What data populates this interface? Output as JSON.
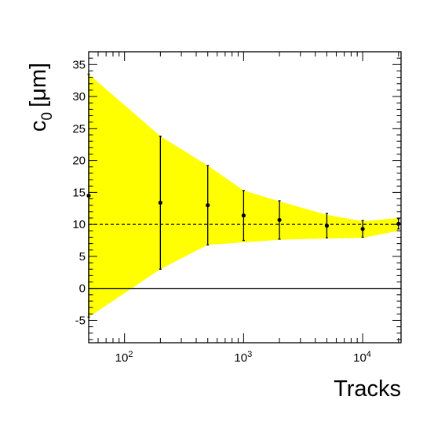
{
  "chart_data": {
    "type": "scatter",
    "xlabel": "Tracks",
    "ylabel_main": "c",
    "ylabel_sub": "0",
    "ylabel_unit": "[μm]",
    "xscale": "log",
    "xlim": [
      50,
      21000
    ],
    "ylim": [
      -8.5,
      37
    ],
    "grid": false,
    "reference_line_y": 10,
    "zero_line_y": 0,
    "x_tick_labels": [
      {
        "value": 100,
        "base": "10",
        "exp": "2"
      },
      {
        "value": 1000,
        "base": "10",
        "exp": "3"
      },
      {
        "value": 10000,
        "base": "10",
        "exp": "4"
      }
    ],
    "y_tick_labels": [
      "-5",
      "0",
      "5",
      "10",
      "15",
      "20",
      "25",
      "30",
      "35"
    ],
    "band": {
      "color": "#ffff00",
      "x": [
        50,
        200,
        500,
        1000,
        2000,
        5000,
        10000,
        20000
      ],
      "upper": [
        33.5,
        23.8,
        19.2,
        15.3,
        13.6,
        11.5,
        10.5,
        11.0
      ],
      "lower": [
        -4.5,
        3.0,
        6.8,
        7.2,
        7.6,
        7.8,
        7.9,
        9.0
      ]
    },
    "points": [
      {
        "x": 50,
        "y": 14.5,
        "yerr": 19
      },
      {
        "x": 200,
        "y": 13.4,
        "yerr": 10.4
      },
      {
        "x": 500,
        "y": 13.0,
        "yerr": 6.2
      },
      {
        "x": 1000,
        "y": 11.4,
        "yerr": 3.9
      },
      {
        "x": 2000,
        "y": 10.7,
        "yerr": 3.0
      },
      {
        "x": 5000,
        "y": 9.8,
        "yerr": 1.9
      },
      {
        "x": 10000,
        "y": 9.3,
        "yerr": 1.3
      },
      {
        "x": 20000,
        "y": 10.1,
        "yerr": 0.8
      }
    ]
  }
}
